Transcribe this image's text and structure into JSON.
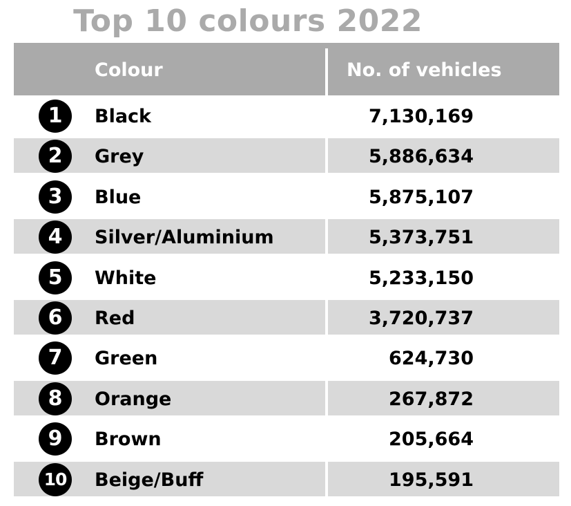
{
  "chart_data": {
    "type": "table",
    "title": "Top 10 colours 2022",
    "columns": [
      "Colour",
      "No. of vehicles"
    ],
    "rows": [
      {
        "rank": "1",
        "colour": "Black",
        "vehicles": "7,130,169"
      },
      {
        "rank": "2",
        "colour": "Grey",
        "vehicles": "5,886,634"
      },
      {
        "rank": "3",
        "colour": "Blue",
        "vehicles": "5,875,107"
      },
      {
        "rank": "4",
        "colour": "Silver/Aluminium",
        "vehicles": "5,373,751"
      },
      {
        "rank": "5",
        "colour": "White",
        "vehicles": "5,233,150"
      },
      {
        "rank": "6",
        "colour": "Red",
        "vehicles": "3,720,737"
      },
      {
        "rank": "7",
        "colour": "Green",
        "vehicles": "624,730"
      },
      {
        "rank": "8",
        "colour": "Orange",
        "vehicles": "267,872"
      },
      {
        "rank": "9",
        "colour": "Brown",
        "vehicles": "205,664"
      },
      {
        "rank": "10",
        "colour": "Beige/Buff",
        "vehicles": "195,591"
      }
    ],
    "colors": {
      "title": "#aaaaaa",
      "header_bg": "#aaaaaa",
      "header_text": "#ffffff",
      "row_shade": "#d9d9d9",
      "badge": "#000000"
    }
  }
}
